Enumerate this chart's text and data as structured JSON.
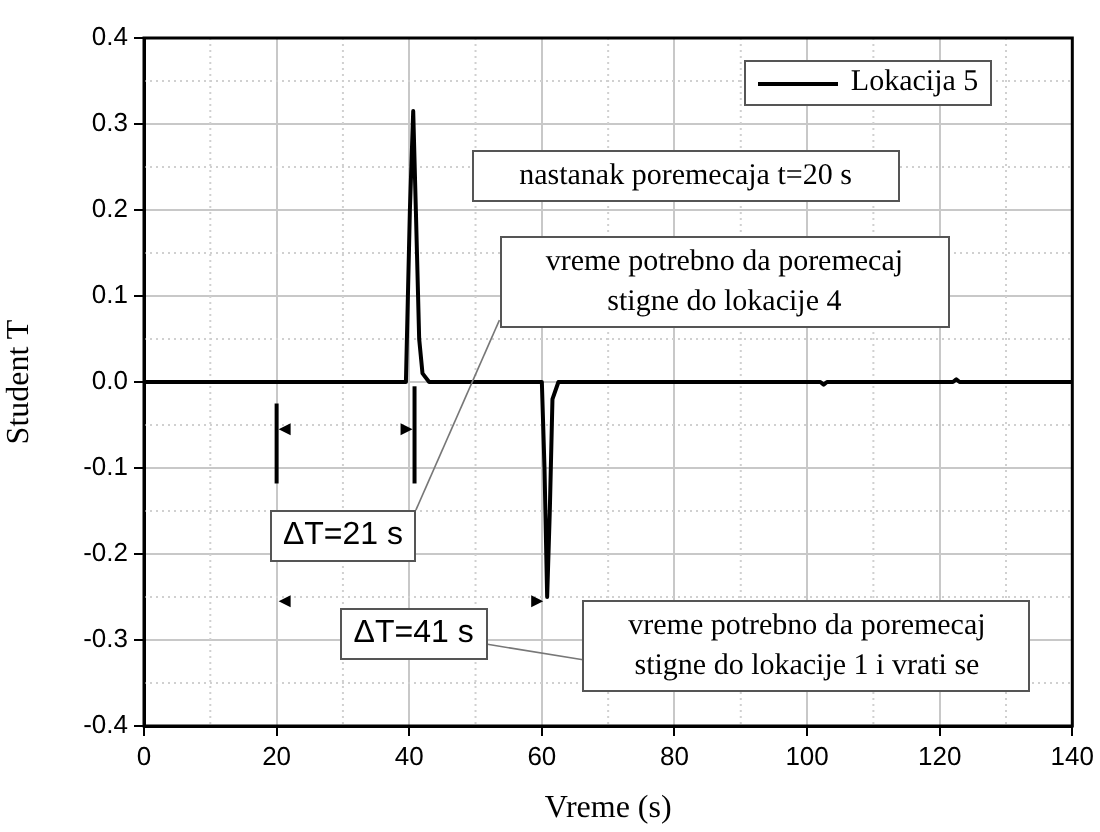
{
  "chart_data": {
    "type": "line",
    "xlabel": "Vreme (s)",
    "ylabel": "Student T",
    "xlim": [
      0,
      140
    ],
    "xticks": [
      0,
      20,
      40,
      60,
      80,
      100,
      120,
      140
    ],
    "ylim": [
      -0.4,
      0.4
    ],
    "yticks": [
      -0.4,
      -0.3,
      -0.2,
      -0.1,
      {
        "value": 0,
        "label": "0.0"
      },
      0.1,
      0.2,
      0.3,
      0.4
    ],
    "grid": true,
    "legend": "top right",
    "marker": "none",
    "line_style": "solid",
    "series": [
      {
        "name": "Lokacija 5",
        "color": "#000000",
        "x": [
          0,
          39.5,
          40.1,
          40.6,
          41.0,
          41.5,
          42.0,
          43.0,
          60.0,
          60.4,
          60.8,
          61.2,
          61.6,
          62.5,
          102,
          102.5,
          103,
          122,
          122.5,
          123,
          140
        ],
        "values": [
          0,
          0,
          0.2,
          0.315,
          0.2,
          0.05,
          0.01,
          0,
          0,
          -0.1,
          -0.25,
          -0.15,
          -0.02,
          0,
          0,
          -0.003,
          0,
          0,
          0.003,
          0,
          0
        ]
      }
    ],
    "annotations": [
      "nastanak poremecaja t=20 s",
      "vreme potrebno da poremecaj stigne do lokacije 4",
      {
        "text": "ΔT=21 s",
        "x": 43,
        "y": 0
      },
      "ΔT=41 s",
      "vreme potrebno da poremecaj stigne do lokacije 1 i vrati se"
    ]
  }
}
